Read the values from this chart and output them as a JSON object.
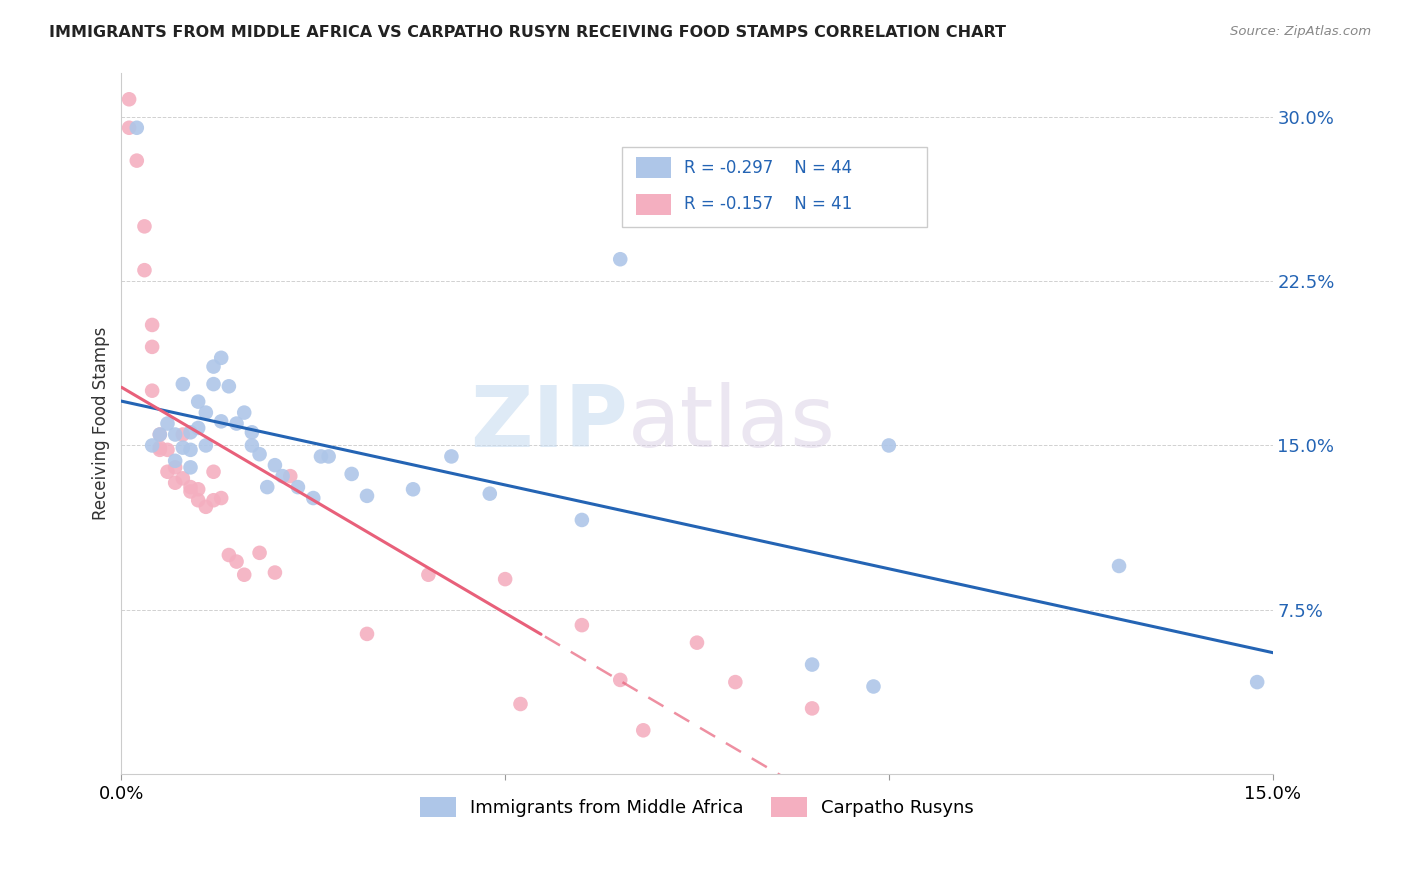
{
  "title": "IMMIGRANTS FROM MIDDLE AFRICA VS CARPATHO RUSYN RECEIVING FOOD STAMPS CORRELATION CHART",
  "source": "Source: ZipAtlas.com",
  "ylabel": "Receiving Food Stamps",
  "yticks": [
    0.075,
    0.15,
    0.225,
    0.3
  ],
  "ytick_labels": [
    "7.5%",
    "15.0%",
    "22.5%",
    "30.0%"
  ],
  "xlim": [
    0.0,
    0.15
  ],
  "ylim": [
    0.0,
    0.32
  ],
  "legend_r1": "R = -0.297",
  "legend_n1": "N = 44",
  "legend_r2": "R = -0.157",
  "legend_n2": "N = 41",
  "legend_label1": "Immigrants from Middle Africa",
  "legend_label2": "Carpatho Rusyns",
  "color_blue": "#aec6e8",
  "color_pink": "#f4afc0",
  "line_color_blue": "#2464b4",
  "line_color_pink": "#e8607a",
  "watermark_zip": "ZIP",
  "watermark_atlas": "atlas",
  "blue_x": [
    0.002,
    0.004,
    0.005,
    0.006,
    0.007,
    0.007,
    0.008,
    0.008,
    0.009,
    0.009,
    0.009,
    0.01,
    0.01,
    0.011,
    0.011,
    0.012,
    0.012,
    0.013,
    0.013,
    0.014,
    0.015,
    0.016,
    0.017,
    0.017,
    0.018,
    0.019,
    0.02,
    0.021,
    0.023,
    0.025,
    0.026,
    0.027,
    0.03,
    0.032,
    0.038,
    0.043,
    0.048,
    0.06,
    0.065,
    0.09,
    0.098,
    0.1,
    0.13,
    0.148
  ],
  "blue_y": [
    0.295,
    0.15,
    0.155,
    0.16,
    0.155,
    0.143,
    0.178,
    0.149,
    0.156,
    0.148,
    0.14,
    0.158,
    0.17,
    0.15,
    0.165,
    0.186,
    0.178,
    0.161,
    0.19,
    0.177,
    0.16,
    0.165,
    0.156,
    0.15,
    0.146,
    0.131,
    0.141,
    0.136,
    0.131,
    0.126,
    0.145,
    0.145,
    0.137,
    0.127,
    0.13,
    0.145,
    0.128,
    0.116,
    0.235,
    0.05,
    0.04,
    0.15,
    0.095,
    0.042
  ],
  "pink_x": [
    0.001,
    0.001,
    0.002,
    0.003,
    0.003,
    0.004,
    0.004,
    0.004,
    0.005,
    0.005,
    0.005,
    0.006,
    0.006,
    0.007,
    0.007,
    0.008,
    0.008,
    0.009,
    0.009,
    0.01,
    0.01,
    0.011,
    0.012,
    0.012,
    0.013,
    0.014,
    0.015,
    0.016,
    0.018,
    0.02,
    0.022,
    0.032,
    0.04,
    0.05,
    0.052,
    0.06,
    0.065,
    0.068,
    0.075,
    0.08,
    0.09
  ],
  "pink_y": [
    0.308,
    0.295,
    0.28,
    0.25,
    0.23,
    0.205,
    0.195,
    0.175,
    0.155,
    0.149,
    0.148,
    0.148,
    0.138,
    0.14,
    0.133,
    0.155,
    0.135,
    0.131,
    0.129,
    0.13,
    0.125,
    0.122,
    0.138,
    0.125,
    0.126,
    0.1,
    0.097,
    0.091,
    0.101,
    0.092,
    0.136,
    0.064,
    0.091,
    0.089,
    0.032,
    0.068,
    0.043,
    0.02,
    0.06,
    0.042,
    0.03
  ]
}
